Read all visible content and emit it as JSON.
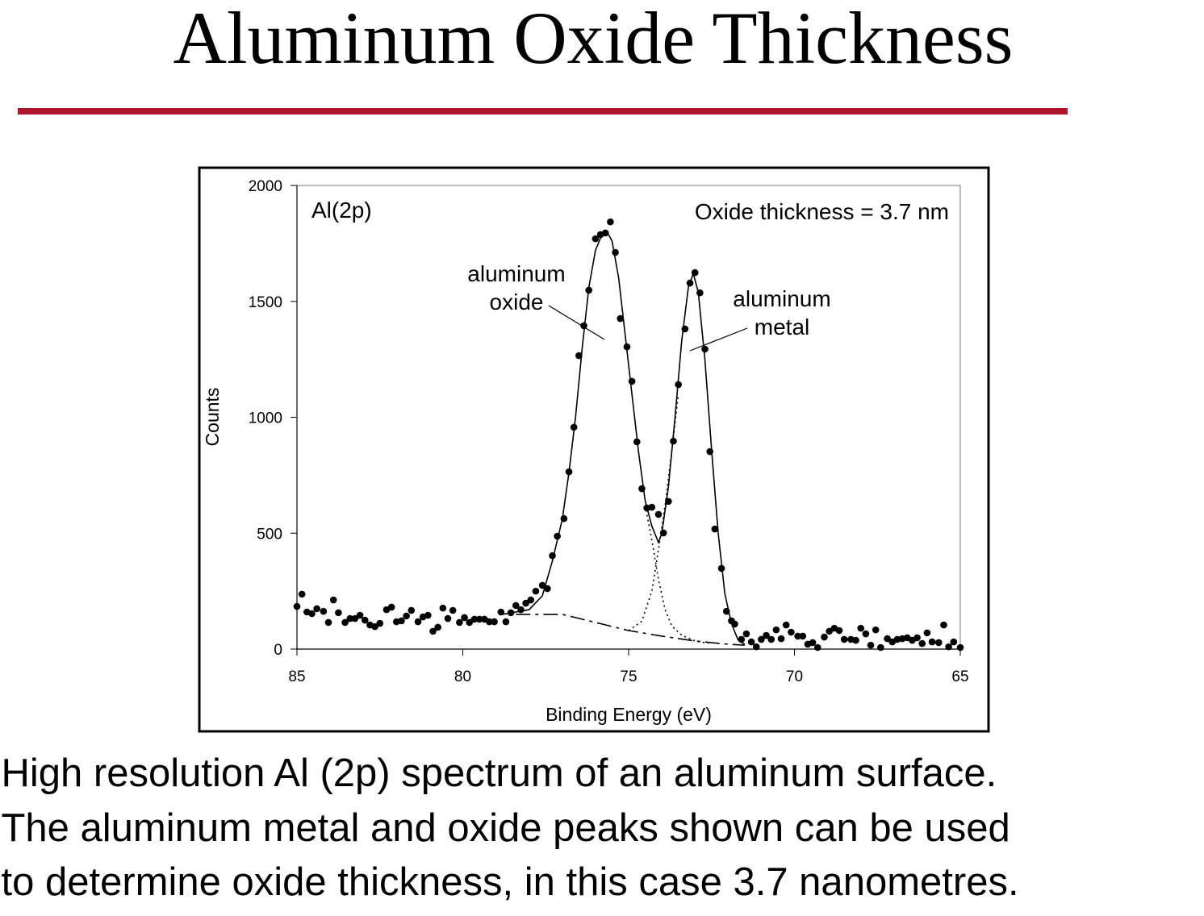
{
  "slide": {
    "title": "Aluminum Oxide Thickness",
    "caption": [
      "High resolution Al (2p) spectrum of an aluminum surface.",
      "The aluminum metal and oxide peaks shown can be used",
      "to determine oxide thickness, in this case 3.7 nanometres."
    ]
  },
  "chart_data": {
    "type": "scatter",
    "xlabel": "Binding Energy (eV)",
    "ylabel": "Counts",
    "xlim": [
      85,
      65
    ],
    "ylim": [
      0,
      2000
    ],
    "xticks": [
      85,
      80,
      75,
      70,
      65
    ],
    "yticks": [
      0,
      500,
      1000,
      1500,
      2000
    ],
    "annotations": {
      "peak_label": "Al(2p)",
      "thickness": "Oxide thickness = 3.7 nm",
      "oxide": [
        "aluminum",
        "oxide"
      ],
      "metal": [
        "aluminum",
        "metal"
      ]
    },
    "series": [
      {
        "style": "markers",
        "color": "#000000",
        "x": [
          85.0,
          84.85,
          84.7,
          84.55,
          84.4,
          84.2,
          84.05,
          83.9,
          83.75,
          83.55,
          83.4,
          83.25,
          83.1,
          82.95,
          82.8,
          82.65,
          82.5,
          82.3,
          82.15,
          82.0,
          81.85,
          81.7,
          81.55,
          81.35,
          81.2,
          81.05,
          80.9,
          80.75,
          80.6,
          80.45,
          80.3,
          80.1,
          79.95,
          79.8,
          79.65,
          79.5,
          79.35,
          79.2,
          79.05,
          78.85,
          78.7,
          78.55,
          78.4,
          78.25,
          78.1,
          77.95,
          77.8,
          77.6,
          77.45,
          77.3,
          77.15,
          76.95,
          76.8,
          76.65,
          76.5,
          76.35,
          76.2,
          76.0,
          75.85,
          75.7,
          75.55,
          75.4,
          75.25,
          75.05,
          74.9,
          74.75,
          74.6,
          74.45,
          74.3,
          74.1,
          73.95,
          73.8,
          73.65,
          73.5,
          73.3,
          73.15,
          73.0,
          72.85,
          72.7,
          72.55,
          72.4,
          72.2,
          72.05,
          71.9,
          71.8,
          71.6,
          71.45,
          71.3,
          71.15,
          71.0,
          70.85,
          70.7,
          70.55,
          70.4,
          70.25,
          70.1,
          69.9,
          69.75,
          69.6,
          69.45,
          69.3,
          69.1,
          68.95,
          68.8,
          68.65,
          68.5,
          68.3,
          68.15,
          68.0,
          67.85,
          67.7,
          67.55,
          67.4,
          67.2,
          67.05,
          66.9,
          66.75,
          66.6,
          66.45,
          66.3,
          66.15,
          66.0,
          65.85,
          65.65,
          65.5,
          65.35,
          65.2,
          65.0
        ],
        "values": [
          184,
          237,
          160,
          153,
          174,
          163,
          115,
          212,
          157,
          115,
          132,
          132,
          146,
          125,
          104,
          97,
          111,
          170,
          181,
          118,
          122,
          143,
          167,
          118,
          139,
          146,
          77,
          94,
          177,
          132,
          167,
          115,
          136,
          115,
          129,
          129,
          129,
          118,
          118,
          160,
          118,
          157,
          188,
          170,
          198,
          212,
          250,
          275,
          261,
          403,
          487,
          563,
          765,
          957,
          1266,
          1395,
          1548,
          1770,
          1788,
          1795,
          1843,
          1711,
          1426,
          1304,
          1155,
          894,
          692,
          609,
          612,
          581,
          501,
          637,
          897,
          1141,
          1381,
          1579,
          1624,
          1537,
          1294,
          852,
          518,
          348,
          163,
          122,
          108,
          42,
          66,
          31,
          10,
          42,
          59,
          42,
          83,
          45,
          104,
          73,
          56,
          56,
          21,
          28,
          7,
          52,
          77,
          90,
          80,
          42,
          42,
          38,
          90,
          66,
          17,
          83,
          7,
          45,
          31,
          42,
          45,
          49,
          38,
          49,
          24,
          70,
          31,
          28,
          104,
          10,
          31,
          7
        ]
      },
      {
        "style": "solid",
        "color": "#000000",
        "x": [
          78.8,
          78.0,
          77.6,
          77.3,
          77.0,
          76.8,
          76.6,
          76.4,
          76.2,
          76.0,
          75.8,
          75.65,
          75.5,
          75.3,
          75.1,
          74.9,
          74.7,
          74.5,
          74.3,
          74.1,
          74.0,
          73.8,
          73.6,
          73.4,
          73.2,
          73.05,
          72.9,
          72.7,
          72.5,
          72.3,
          72.1,
          71.9,
          71.7,
          71.5
        ],
        "values": [
          150,
          170,
          230,
          380,
          560,
          760,
          1000,
          1300,
          1560,
          1720,
          1790,
          1800,
          1760,
          1600,
          1350,
          1100,
          850,
          640,
          530,
          460,
          500,
          700,
          1000,
          1330,
          1560,
          1620,
          1540,
          1250,
          860,
          500,
          240,
          110,
          40,
          20
        ]
      },
      {
        "style": "dotted",
        "color": "#000000",
        "x": [
          74.5,
          74.3,
          74.1,
          73.9,
          73.7,
          73.4,
          73.0,
          72.6
        ],
        "values": [
          620,
          470,
          300,
          170,
          100,
          60,
          35,
          25
        ]
      },
      {
        "style": "dotted",
        "color": "#000000",
        "x": [
          75.0,
          74.6,
          74.3,
          74.1,
          73.9,
          73.7,
          73.5
        ],
        "values": [
          80,
          120,
          250,
          430,
          620,
          850,
          1100
        ]
      },
      {
        "style": "dashed",
        "color": "#000000",
        "x": [
          78.4,
          77.0,
          76.0,
          75.0,
          74.0,
          73.0,
          72.0,
          71.5
        ],
        "values": [
          150,
          150,
          115,
          80,
          56,
          35,
          21,
          17
        ]
      }
    ]
  }
}
